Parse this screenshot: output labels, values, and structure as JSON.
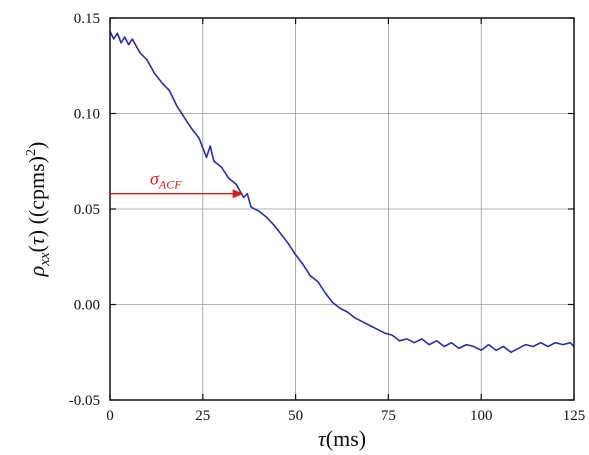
{
  "chart_data": {
    "type": "line",
    "title": "",
    "xlabel": "τ (ms)",
    "ylabel": "ρxx(τ) ((cpms)²)",
    "xlim": [
      0,
      125
    ],
    "ylim": [
      -0.05,
      0.15
    ],
    "xticks": [
      0,
      25,
      50,
      75,
      100,
      125
    ],
    "yticks": [
      -0.05,
      0.0,
      0.05,
      0.1,
      0.15
    ],
    "xtick_labels": [
      "0",
      "25",
      "50",
      "75",
      "100",
      "125"
    ],
    "ytick_labels": [
      "-0.05",
      "0.00",
      "0.05",
      "0.10",
      "0.15"
    ],
    "grid": true,
    "series": [
      {
        "color": "#2d2d9e",
        "x": [
          0,
          1,
          2,
          3,
          4,
          5,
          6,
          8,
          10,
          12,
          14,
          16,
          18,
          20,
          22,
          24,
          26,
          27,
          28,
          30,
          32,
          34,
          36,
          37,
          38,
          40,
          42,
          44,
          46,
          48,
          50,
          52,
          54,
          56,
          58,
          60,
          62,
          64,
          66,
          68,
          70,
          72,
          74,
          76,
          78,
          80,
          82,
          84,
          86,
          88,
          90,
          92,
          94,
          96,
          98,
          100,
          102,
          104,
          106,
          108,
          110,
          112,
          114,
          116,
          118,
          120,
          122,
          124,
          125
        ],
        "y": [
          0.143,
          0.139,
          0.142,
          0.137,
          0.14,
          0.136,
          0.139,
          0.132,
          0.128,
          0.121,
          0.116,
          0.112,
          0.104,
          0.098,
          0.092,
          0.087,
          0.077,
          0.083,
          0.075,
          0.072,
          0.066,
          0.063,
          0.056,
          0.058,
          0.051,
          0.049,
          0.046,
          0.042,
          0.037,
          0.032,
          0.026,
          0.021,
          0.015,
          0.012,
          0.006,
          0.001,
          -0.002,
          -0.004,
          -0.007,
          -0.009,
          -0.011,
          -0.013,
          -0.015,
          -0.016,
          -0.019,
          -0.018,
          -0.02,
          -0.018,
          -0.021,
          -0.019,
          -0.022,
          -0.02,
          -0.023,
          -0.021,
          -0.022,
          -0.024,
          -0.021,
          -0.024,
          -0.022,
          -0.025,
          -0.023,
          -0.021,
          -0.022,
          -0.02,
          -0.022,
          -0.02,
          -0.021,
          -0.02,
          -0.022
        ]
      }
    ],
    "annotations": [
      {
        "text": "σACF",
        "x": 36,
        "y": 0.058
      }
    ]
  }
}
